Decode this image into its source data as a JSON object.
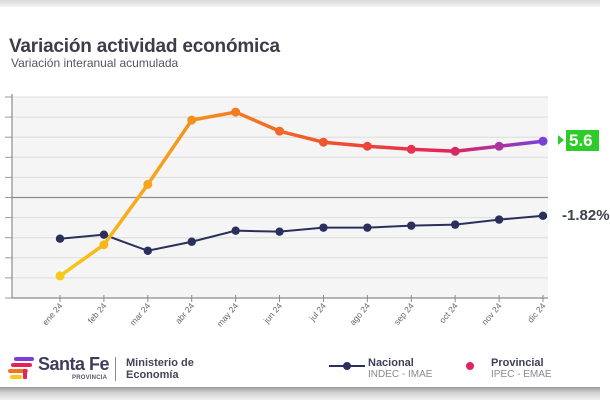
{
  "header": {
    "title": "Variación actividad económica",
    "subtitle": "Variación interanual acumulada"
  },
  "chart_data": {
    "type": "line",
    "title": "Variación actividad económica",
    "subtitle": "Variación interanual acumulada",
    "xlabel": "",
    "ylabel": "",
    "categories": [
      "ene 24",
      "feb 24",
      "mar 24",
      "abr 24",
      "may 24",
      "jun 24",
      "jul 24",
      "ago 24",
      "sep 24",
      "oct 24",
      "nov 24",
      "dic 24"
    ],
    "ylim": [
      -10,
      10
    ],
    "y_grid_step": 2,
    "grid": true,
    "y_tick_labels_visible": false,
    "legend_position": "bottom-right",
    "series": [
      {
        "name": "Nacional",
        "source": "INDEC - IMAE",
        "color": "#2b2f5c",
        "values": [
          -4.1,
          -3.7,
          -5.3,
          -4.4,
          -3.3,
          -3.4,
          -3.0,
          -3.0,
          -2.8,
          -2.7,
          -2.2,
          -1.82
        ],
        "end_label": "-1.82%"
      },
      {
        "name": "Provincial",
        "source": "IPEC - EMAE",
        "gradient_colors": [
          "#f7c91b",
          "#f5a21c",
          "#f37321",
          "#ee4a34",
          "#e3245a",
          "#7a3fd8"
        ],
        "values": [
          -7.8,
          -4.7,
          1.3,
          7.7,
          8.5,
          6.6,
          5.5,
          5.1,
          4.8,
          4.6,
          5.1,
          5.6
        ],
        "end_label": "5.6"
      }
    ]
  },
  "badge": {
    "value": "5.6",
    "color": "#2ecc2a"
  },
  "nacional_label": "-1.82%",
  "footer": {
    "brand": "Santa Fe",
    "brand_sub": "PROVINCIA",
    "ministry_line1": "Ministerio de",
    "ministry_line2": "Economía",
    "legend": [
      {
        "name": "Nacional",
        "source": "INDEC - IMAE"
      },
      {
        "name": "Provincial",
        "source": "IPEC - EMAE"
      }
    ]
  }
}
